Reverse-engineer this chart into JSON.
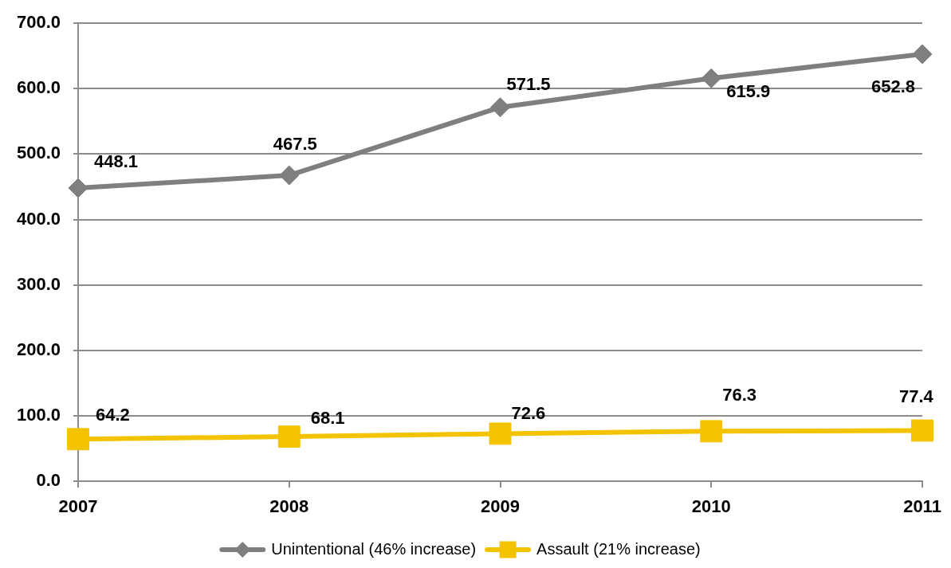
{
  "chart_data": {
    "type": "line",
    "categories": [
      "2007",
      "2008",
      "2009",
      "2010",
      "2011"
    ],
    "series": [
      {
        "name": "Unintentional (46% increase)",
        "color": "#7f7f7f",
        "marker": "diamond",
        "values": [
          448.1,
          467.5,
          571.5,
          615.9,
          652.8
        ]
      },
      {
        "name": "Assault (21% increase)",
        "color": "#f4c300",
        "marker": "square",
        "values": [
          64.2,
          68.1,
          72.6,
          76.3,
          77.4
        ]
      }
    ],
    "ylim": [
      0,
      700
    ],
    "yticks": [
      {
        "value": 0,
        "label": "0.0"
      },
      {
        "value": 100,
        "label": "100.0"
      },
      {
        "value": 200,
        "label": "200.0"
      },
      {
        "value": 300,
        "label": "300.0"
      },
      {
        "value": 400,
        "label": "400.0"
      },
      {
        "value": 500,
        "label": "500.0"
      },
      {
        "value": 600,
        "label": "600.0"
      },
      {
        "value": 700,
        "label": "700.0"
      }
    ],
    "grid": "y",
    "legend": "bottom",
    "data_labels": true,
    "line_style": "solid"
  }
}
